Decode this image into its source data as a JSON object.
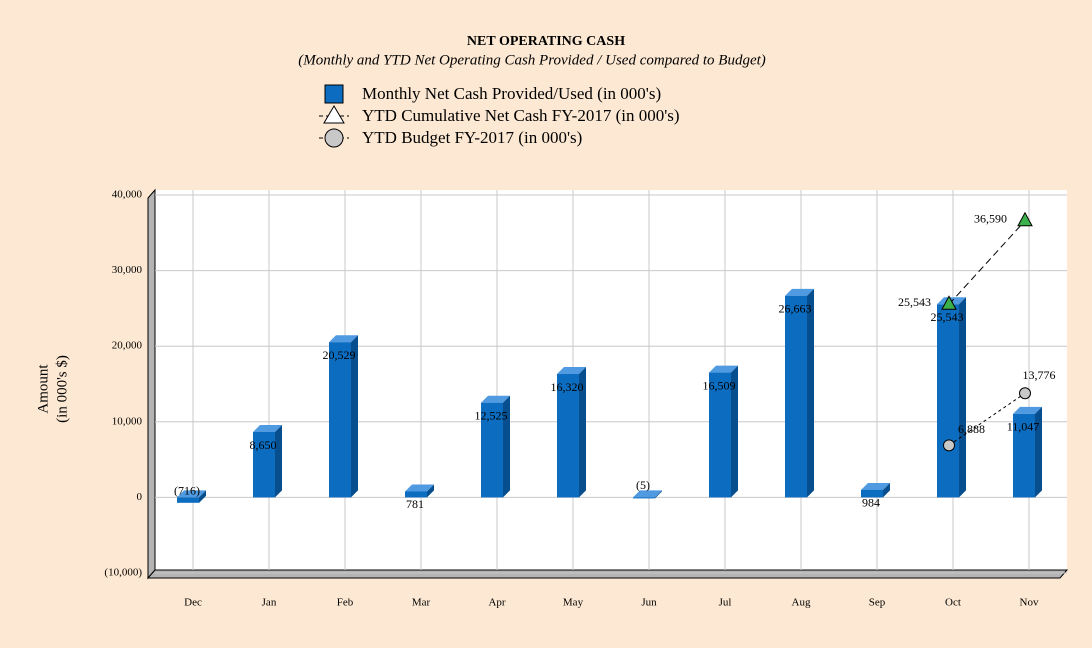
{
  "chart_data": {
    "type": "bar",
    "title": "NET OPERATING CASH",
    "subtitle": "(Monthly and YTD Net Operating Cash Provided / Used compared to Budget)",
    "y_label": [
      "Amount",
      "(in 000's $)"
    ],
    "categories": [
      "Dec",
      "Jan",
      "Feb",
      "Mar",
      "Apr",
      "May",
      "Jun",
      "Jul",
      "Aug",
      "Sep",
      "Oct",
      "Nov"
    ],
    "ylim": [
      -10000,
      40000
    ],
    "yticks": [
      {
        "value": -10000,
        "label": "(10,000)"
      },
      0,
      {
        "value": 10000,
        "label": "10,000"
      },
      {
        "value": 20000,
        "label": "20,000"
      },
      {
        "value": 30000,
        "label": "30,000"
      },
      {
        "value": 40000,
        "label": "40,000"
      }
    ],
    "grid": true,
    "series": [
      {
        "name": "Monthly Net Cash Provided/Used (in 000's)",
        "type": "bar",
        "color": "#0b6cc0",
        "values": [
          -716,
          8650,
          20529,
          781,
          12525,
          16320,
          -5,
          16509,
          26663,
          984,
          25543,
          11047
        ],
        "value_labels": [
          "(716)",
          "8,650",
          "20,529",
          "781",
          "12,525",
          "16,320",
          "(5)",
          "16,509",
          "26,663",
          "984",
          "25,543",
          "11,047"
        ]
      },
      {
        "name": "YTD Cumulative Net Cash FY-2017 (in 000's)",
        "type": "line",
        "marker": "triangle",
        "color": "#3cb04a",
        "values": [
          null,
          null,
          null,
          null,
          null,
          null,
          null,
          null,
          null,
          null,
          25543,
          36590
        ],
        "value_labels": [
          null,
          null,
          null,
          null,
          null,
          null,
          null,
          null,
          null,
          null,
          "25,543",
          "36,590"
        ]
      },
      {
        "name": "YTD Budget FY-2017 (in 000's)",
        "type": "line",
        "marker": "circle",
        "color": "#c8c8c8",
        "values": [
          null,
          null,
          null,
          null,
          null,
          null,
          null,
          null,
          null,
          null,
          6888,
          13776
        ],
        "value_labels": [
          null,
          null,
          null,
          null,
          null,
          null,
          null,
          null,
          null,
          null,
          "6,888",
          "13,776"
        ]
      }
    ]
  }
}
